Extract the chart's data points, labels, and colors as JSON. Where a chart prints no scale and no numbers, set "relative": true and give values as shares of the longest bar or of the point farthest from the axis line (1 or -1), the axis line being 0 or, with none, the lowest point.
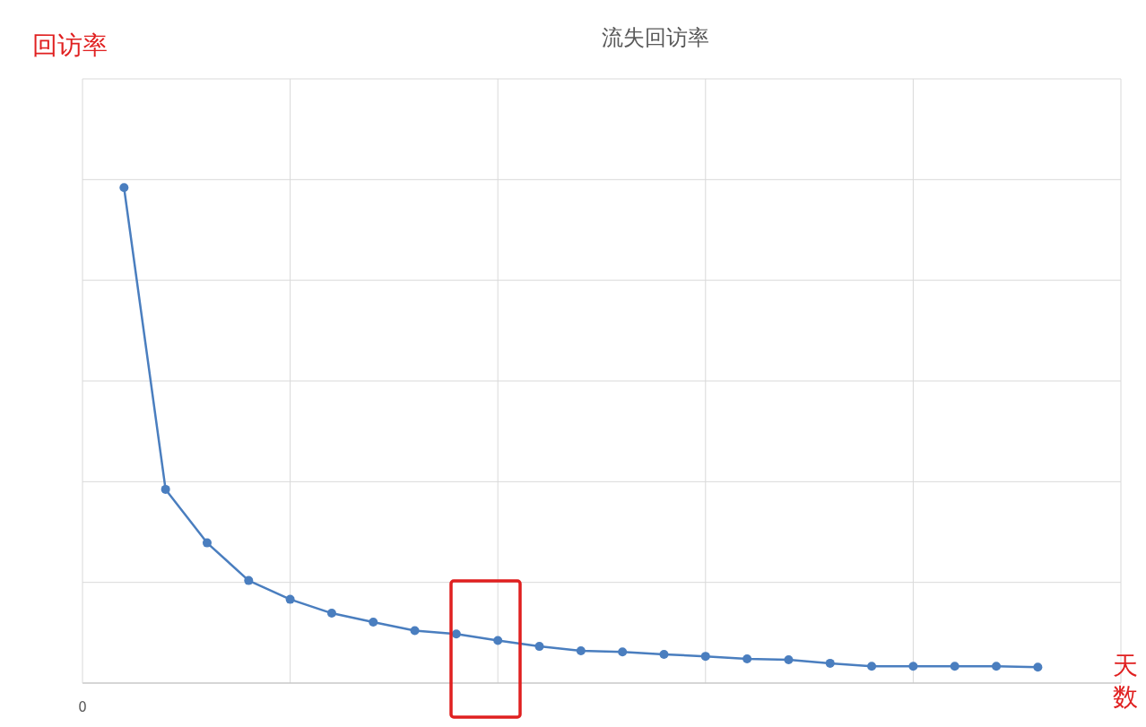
{
  "chart_data": {
    "type": "line",
    "title": "流失回访率",
    "relative": true,
    "marker": "circle",
    "line_style": "solid",
    "grid": true,
    "categories": [
      null,
      null,
      null,
      null,
      null,
      null,
      null,
      null,
      null,
      null,
      null,
      null,
      null,
      null,
      null,
      null,
      null,
      null,
      null,
      null,
      null,
      null,
      null
    ],
    "series": [
      {
        "color": "#4a7ebf",
        "values": [
          1,
          0.391,
          0.283,
          0.207,
          0.169,
          0.141,
          0.123,
          0.106,
          0.099,
          0.086,
          0.074,
          0.065,
          0.063,
          0.058,
          0.054,
          0.049,
          0.047,
          0.04,
          0.034,
          0.034,
          0.034,
          0.034,
          0.032
        ]
      }
    ],
    "annotations": [
      "回访率",
      "天数",
      "0"
    ]
  }
}
